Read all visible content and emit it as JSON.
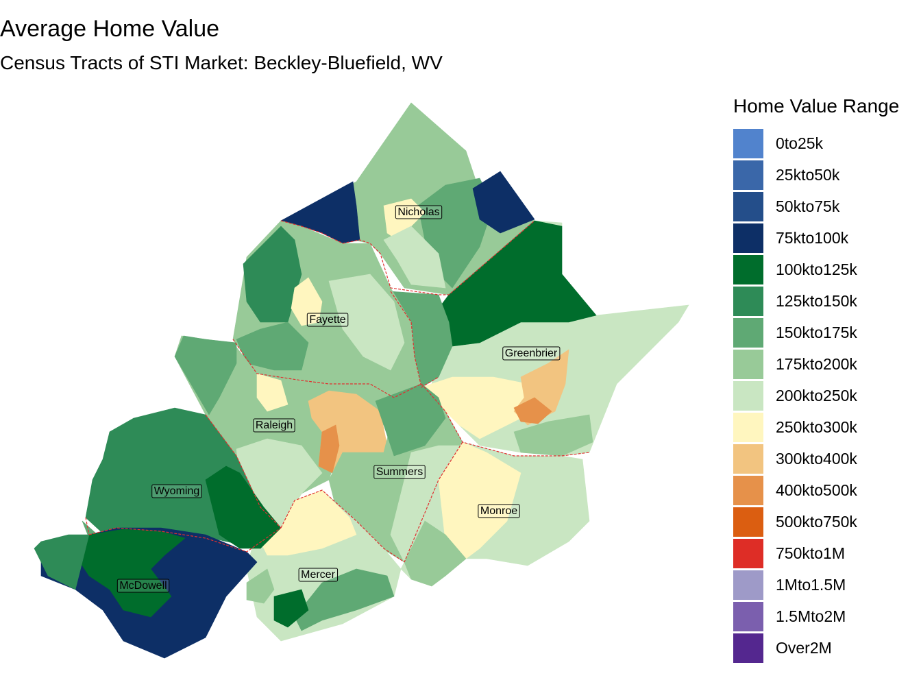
{
  "title": "Average Home Value",
  "subtitle": "Census Tracts of STI Market: Beckley-Bluefield, WV",
  "legend": {
    "title": "Home Value Range",
    "items": [
      {
        "label": "0to25k",
        "color": "#5183CD"
      },
      {
        "label": "25kto50k",
        "color": "#3A67A9"
      },
      {
        "label": "50kto75k",
        "color": "#244E8A"
      },
      {
        "label": "75kto100k",
        "color": "#0D2F66"
      },
      {
        "label": "100kto125k",
        "color": "#006D2C"
      },
      {
        "label": "125kto150k",
        "color": "#2E8B57"
      },
      {
        "label": "150kto175k",
        "color": "#5FA974"
      },
      {
        "label": "175kto200k",
        "color": "#98CA98"
      },
      {
        "label": "200kto250k",
        "color": "#C9E6C2"
      },
      {
        "label": "250kto300k",
        "color": "#FFF6BF"
      },
      {
        "label": "300kto400k",
        "color": "#F2C480"
      },
      {
        "label": "400kto500k",
        "color": "#E6914A"
      },
      {
        "label": "500kto750k",
        "color": "#DB5E11"
      },
      {
        "label": "750kto1M",
        "color": "#DE2D26"
      },
      {
        "label": "1Mto1.5M",
        "color": "#9E9AC8"
      },
      {
        "label": "1.5Mto2M",
        "color": "#7B5FAE"
      },
      {
        "label": "Over2M",
        "color": "#54278F"
      }
    ]
  },
  "counties": [
    {
      "name": "Nicholas",
      "range": "175kto200k"
    },
    {
      "name": "Fayette",
      "range": "175kto200k"
    },
    {
      "name": "Greenbrier",
      "range": "200kto250k"
    },
    {
      "name": "Raleigh",
      "range": "175kto200k"
    },
    {
      "name": "Summers",
      "range": "175kto200k"
    },
    {
      "name": "Wyoming",
      "range": "125kto150k"
    },
    {
      "name": "Monroe",
      "range": "250kto300k"
    },
    {
      "name": "Mercer",
      "range": "200kto250k"
    },
    {
      "name": "McDowell",
      "range": "75kto100k"
    }
  ]
}
